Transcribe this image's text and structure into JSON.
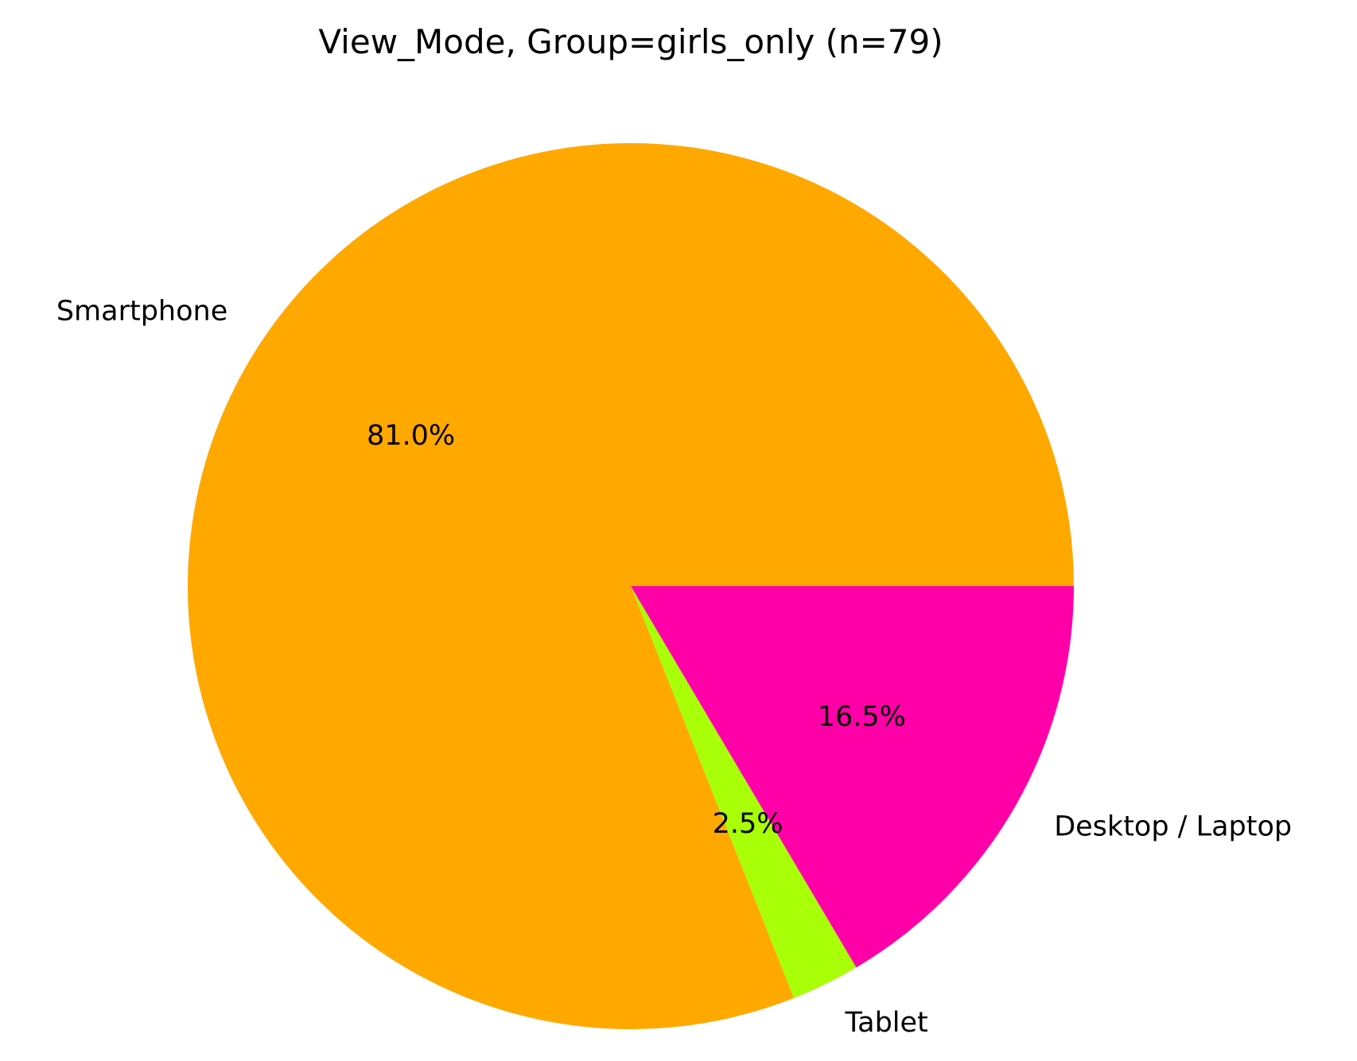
{
  "chart_data": {
    "type": "pie",
    "title": "View_Mode, Group=girls_only (n=79)",
    "start_angle_deg": 0,
    "direction": "counterclockwise",
    "slices": [
      {
        "label": "Smartphone",
        "value": 81.0,
        "pct_label": "81.0%",
        "color": "#FFA800"
      },
      {
        "label": "Tablet",
        "value": 2.5,
        "pct_label": "2.5%",
        "color": "#A8FF08"
      },
      {
        "label": "Desktop / Laptop",
        "value": 16.5,
        "pct_label": "16.5%",
        "color": "#FF00A8"
      }
    ]
  }
}
